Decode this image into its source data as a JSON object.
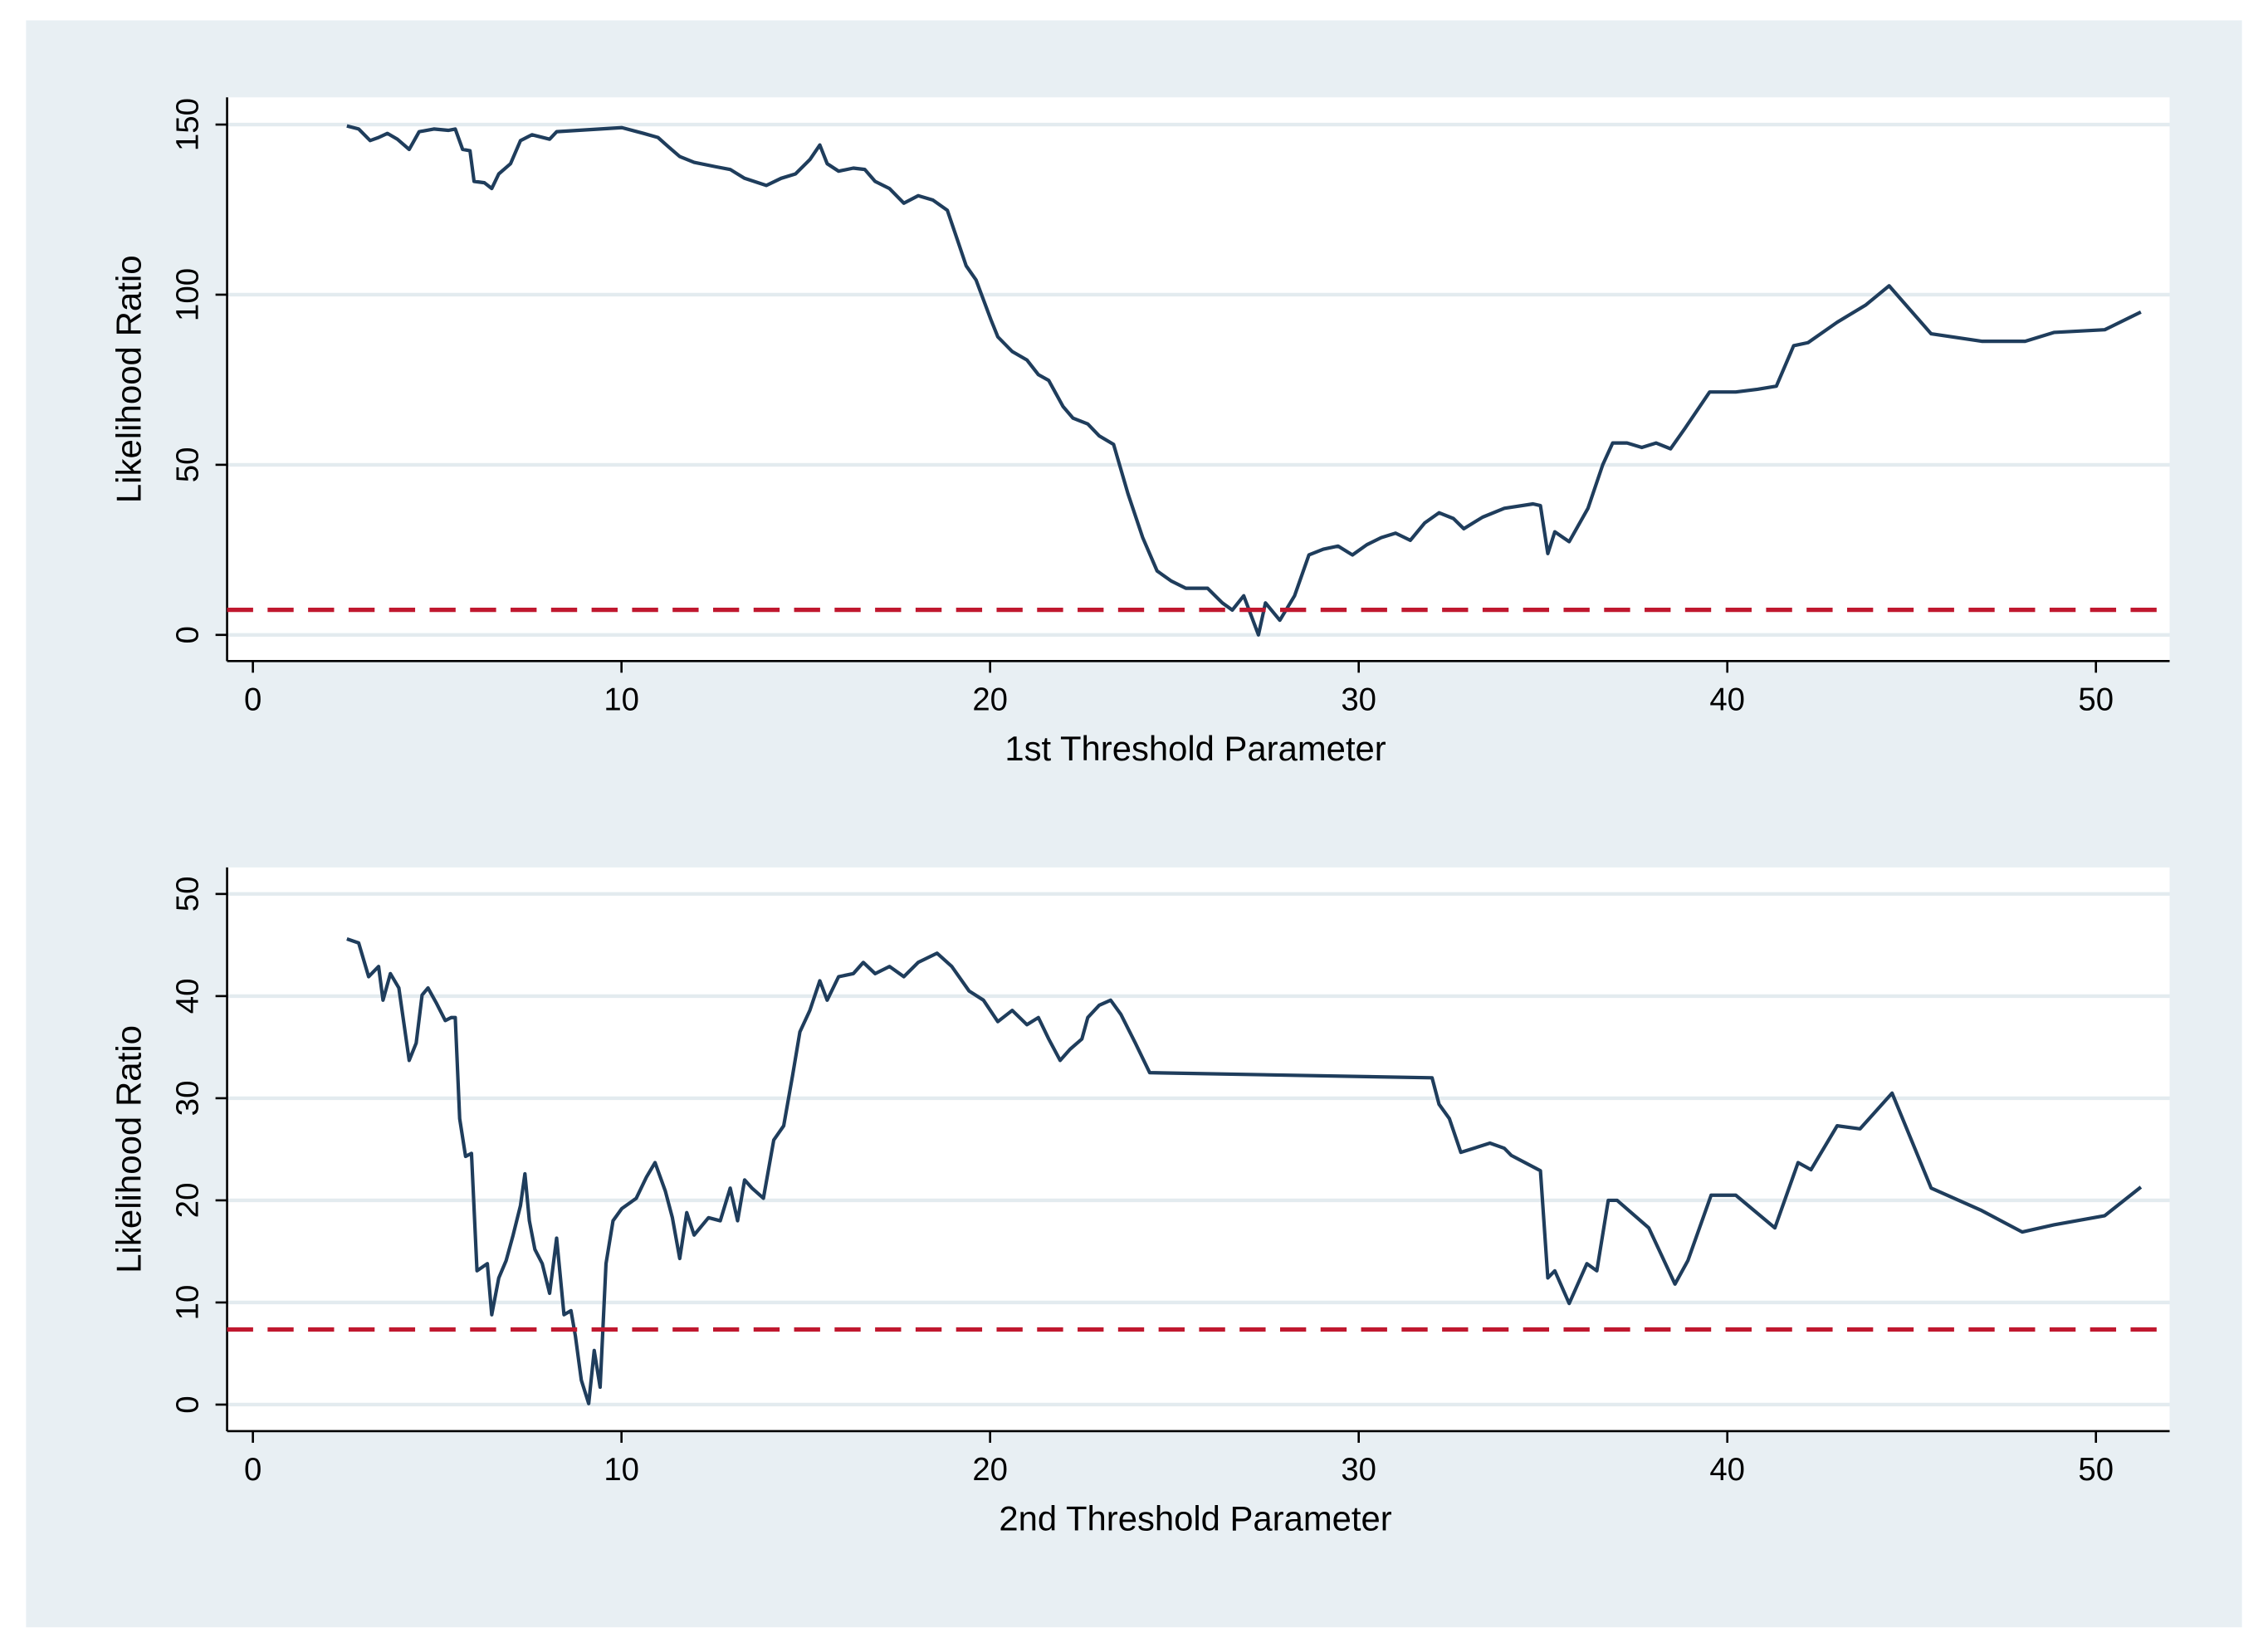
{
  "chart_data": [
    {
      "type": "line",
      "x_label": "1st Threshold Parameter",
      "y_label": "Likelihood Ratio",
      "xlim": [
        -0.7,
        52
      ],
      "xticks": [
        0,
        10,
        20,
        30,
        40,
        50
      ],
      "ylim": [
        -7.7,
        158
      ],
      "yticks": [
        0,
        50,
        100,
        150
      ],
      "grid": true,
      "color": "#1f3d5c",
      "hline": 7.35,
      "hline_color": "#c0182f",
      "x": [
        2.55,
        2.87,
        3.18,
        3.41,
        3.65,
        3.92,
        4.24,
        4.51,
        4.91,
        5.3,
        5.49,
        5.69,
        5.89,
        6.0,
        6.28,
        6.48,
        6.67,
        6.99,
        7.26,
        7.57,
        8.05,
        8.24,
        10.01,
        10.6,
        10.99,
        11.26,
        11.58,
        11.97,
        12.56,
        12.95,
        13.34,
        13.93,
        14.33,
        14.72,
        15.11,
        15.38,
        15.58,
        15.89,
        16.29,
        16.6,
        16.88,
        17.27,
        17.66,
        18.05,
        18.45,
        18.84,
        19.11,
        19.35,
        19.62,
        20.02,
        20.21,
        20.6,
        21.0,
        21.31,
        21.59,
        21.98,
        22.25,
        22.65,
        22.96,
        23.35,
        23.74,
        24.14,
        24.53,
        24.92,
        25.31,
        25.9,
        26.3,
        26.57,
        26.88,
        27.28,
        27.47,
        27.86,
        28.26,
        28.65,
        29.04,
        29.44,
        29.83,
        30.22,
        30.61,
        31.0,
        31.4,
        31.79,
        32.18,
        32.57,
        32.85,
        33.36,
        33.95,
        34.73,
        34.93,
        35.13,
        35.32,
        35.71,
        36.22,
        36.62,
        36.89,
        37.28,
        37.68,
        38.07,
        38.46,
        38.85,
        39.52,
        40.23,
        40.82,
        41.33,
        41.8,
        42.19,
        42.98,
        43.76,
        44.39,
        45.53,
        46.9,
        48.08,
        48.86,
        50.24,
        51.22
      ],
      "values": [
        149.6,
        148.7,
        145.3,
        146.2,
        147.4,
        145.7,
        142.7,
        147.9,
        148.7,
        148.3,
        148.7,
        142.7,
        142.3,
        133.3,
        132.9,
        131.2,
        135.5,
        138.5,
        145.3,
        147,
        145.7,
        147.9,
        149.1,
        147.4,
        146.2,
        143.6,
        140.6,
        138.9,
        137.6,
        136.8,
        134.2,
        132.1,
        134.2,
        135.5,
        139.7,
        144,
        138.5,
        136.3,
        137.2,
        136.8,
        133.3,
        131.2,
        126.9,
        129.1,
        127.8,
        124.8,
        116.2,
        108.5,
        104.3,
        92.7,
        87.6,
        83.3,
        80.8,
        76.5,
        74.8,
        67.1,
        63.7,
        62,
        58.5,
        56,
        41.5,
        28.6,
        18.8,
        15.8,
        13.7,
        13.7,
        9.4,
        7.3,
        11.5,
        0,
        9.4,
        4.3,
        11.5,
        23.5,
        25.2,
        26.1,
        23.5,
        26.5,
        28.6,
        29.9,
        27.8,
        32.9,
        35.9,
        34.2,
        31.2,
        34.6,
        37.2,
        38.5,
        38,
        23.9,
        30.3,
        27.4,
        37.2,
        50,
        56.4,
        56.4,
        55.1,
        56.4,
        54.7,
        60.7,
        71.4,
        71.4,
        72.2,
        73.1,
        85,
        85.9,
        91.9,
        97,
        102.6,
        88.5,
        86.3,
        86.3,
        88.9,
        89.7,
        94.9
      ]
    },
    {
      "type": "line",
      "x_label": "2nd Threshold Parameter",
      "y_label": "Likelihood Ratio",
      "xlim": [
        -0.7,
        52
      ],
      "xticks": [
        0,
        10,
        20,
        30,
        40,
        50
      ],
      "ylim": [
        -2.6,
        52.6
      ],
      "yticks": [
        0,
        10,
        20,
        30,
        40,
        50
      ],
      "grid": true,
      "color": "#1f3d5c",
      "hline": 7.35,
      "hline_color": "#c0182f",
      "x": [
        2.55,
        2.87,
        3.14,
        3.41,
        3.53,
        3.73,
        3.96,
        4.24,
        4.43,
        4.59,
        4.75,
        4.98,
        5.22,
        5.38,
        5.49,
        5.61,
        5.77,
        5.93,
        6.08,
        6.36,
        6.48,
        6.67,
        6.87,
        7.06,
        7.26,
        7.38,
        7.5,
        7.65,
        7.85,
        8.05,
        8.24,
        8.44,
        8.63,
        8.75,
        8.91,
        9.11,
        9.26,
        9.42,
        9.58,
        9.77,
        10.01,
        10.4,
        10.68,
        10.91,
        11.19,
        11.38,
        11.58,
        11.77,
        11.97,
        12.36,
        12.68,
        12.95,
        13.15,
        13.34,
        13.54,
        13.85,
        14.13,
        14.4,
        14.64,
        14.84,
        15.11,
        15.38,
        15.58,
        15.89,
        16.29,
        16.56,
        16.88,
        17.27,
        17.66,
        18.05,
        18.56,
        18.96,
        19.43,
        19.82,
        20.21,
        20.6,
        21.0,
        21.31,
        21.59,
        21.9,
        22.17,
        22.49,
        22.65,
        22.96,
        23.27,
        23.55,
        23.94,
        24.33,
        31.99,
        32.18,
        32.46,
        32.77,
        33.56,
        33.95,
        34.14,
        34.93,
        35.13,
        35.32,
        35.71,
        36.19,
        36.46,
        36.77,
        37.01,
        37.87,
        38.58,
        38.93,
        39.56,
        40.23,
        41.29,
        41.92,
        42.27,
        42.98,
        43.6,
        44.47,
        45.53,
        46.9,
        48.0,
        48.86,
        50.24,
        51.22
      ],
      "values": [
        45.6,
        45.2,
        41.9,
        42.9,
        39.6,
        42.2,
        40.8,
        33.7,
        35.4,
        40.1,
        40.8,
        39.3,
        37.6,
        37.9,
        37.9,
        28,
        24.3,
        24.6,
        13.1,
        13.8,
        8.8,
        12.4,
        14.1,
        16.6,
        19.5,
        22.6,
        18,
        15.2,
        13.8,
        10.9,
        16.3,
        8.8,
        9.2,
        6.7,
        2.4,
        0.1,
        5.3,
        1.7,
        13.8,
        18,
        19.2,
        20.2,
        22.3,
        23.7,
        20.9,
        18.3,
        14.3,
        18.8,
        16.6,
        18.3,
        18,
        21.2,
        18,
        22,
        21.2,
        20.2,
        25.9,
        27.3,
        32.2,
        36.5,
        38.6,
        41.5,
        39.6,
        41.9,
        42.2,
        43.3,
        42.2,
        42.9,
        41.9,
        43.3,
        44.2,
        42.9,
        40.5,
        39.6,
        37.5,
        38.6,
        37.2,
        37.9,
        35.8,
        33.7,
        34.8,
        35.8,
        37.9,
        39.1,
        39.6,
        38.2,
        35.4,
        32.5,
        32,
        29.4,
        28,
        24.7,
        25.6,
        25.1,
        24.4,
        22.9,
        12.4,
        13.1,
        9.9,
        13.8,
        13.1,
        20,
        20,
        17.3,
        11.8,
        14.1,
        20.5,
        20.5,
        17.3,
        23.7,
        23,
        27.3,
        27,
        30.5,
        21.2,
        19,
        16.9,
        17.6,
        18.5,
        21.3
      ]
    }
  ]
}
